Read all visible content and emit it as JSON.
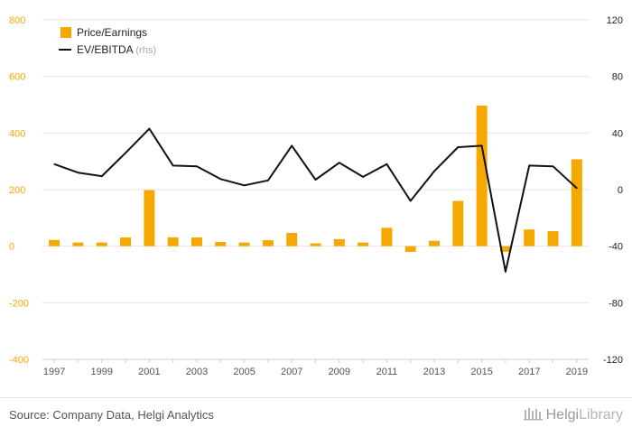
{
  "chart_data": {
    "type": "bar",
    "categories": [
      "1997",
      "1998",
      "1999",
      "2000",
      "2001",
      "2002",
      "2003",
      "2004",
      "2005",
      "2006",
      "2007",
      "2008",
      "2009",
      "2010",
      "2011",
      "2012",
      "2013",
      "2014",
      "2015",
      "2016",
      "2017",
      "2018",
      "2019"
    ],
    "x_tick_labels": [
      "1997",
      "1999",
      "2001",
      "2003",
      "2005",
      "2007",
      "2009",
      "2011",
      "2013",
      "2015",
      "2017",
      "2019"
    ],
    "series": [
      {
        "name": "Price/Earnings",
        "type": "bar",
        "axis": "left",
        "color": "#f5a800",
        "values": [
          22,
          13,
          13,
          31,
          198,
          31,
          31,
          15,
          13,
          21,
          47,
          10,
          25,
          13,
          65,
          -20,
          19,
          160,
          497,
          -20,
          59,
          53,
          307
        ]
      },
      {
        "name": "EV/EBITDA",
        "name_suffix": "(rhs)",
        "type": "line",
        "axis": "right",
        "color": "#111111",
        "values": [
          18,
          12,
          9.5,
          26,
          43,
          17,
          16.5,
          7.5,
          3,
          6.5,
          31,
          7,
          19,
          9,
          18,
          -8,
          13,
          30,
          31,
          -58,
          17,
          16.5,
          1
        ]
      }
    ],
    "y_left": {
      "ylim": [
        -400,
        800
      ],
      "ticks": [
        "800",
        "600",
        "400",
        "200",
        "0",
        "-200",
        "-400"
      ]
    },
    "y_right": {
      "ylim": [
        -120,
        120
      ],
      "ticks": [
        "120",
        "80",
        "40",
        "0",
        "-40",
        "-80",
        "-120"
      ]
    },
    "grid": true,
    "legend_position": "top-left"
  },
  "footer": {
    "source": "Source: Company Data, Helgi Analytics",
    "logo_part1": "Helgi",
    "logo_part2": "Library"
  }
}
